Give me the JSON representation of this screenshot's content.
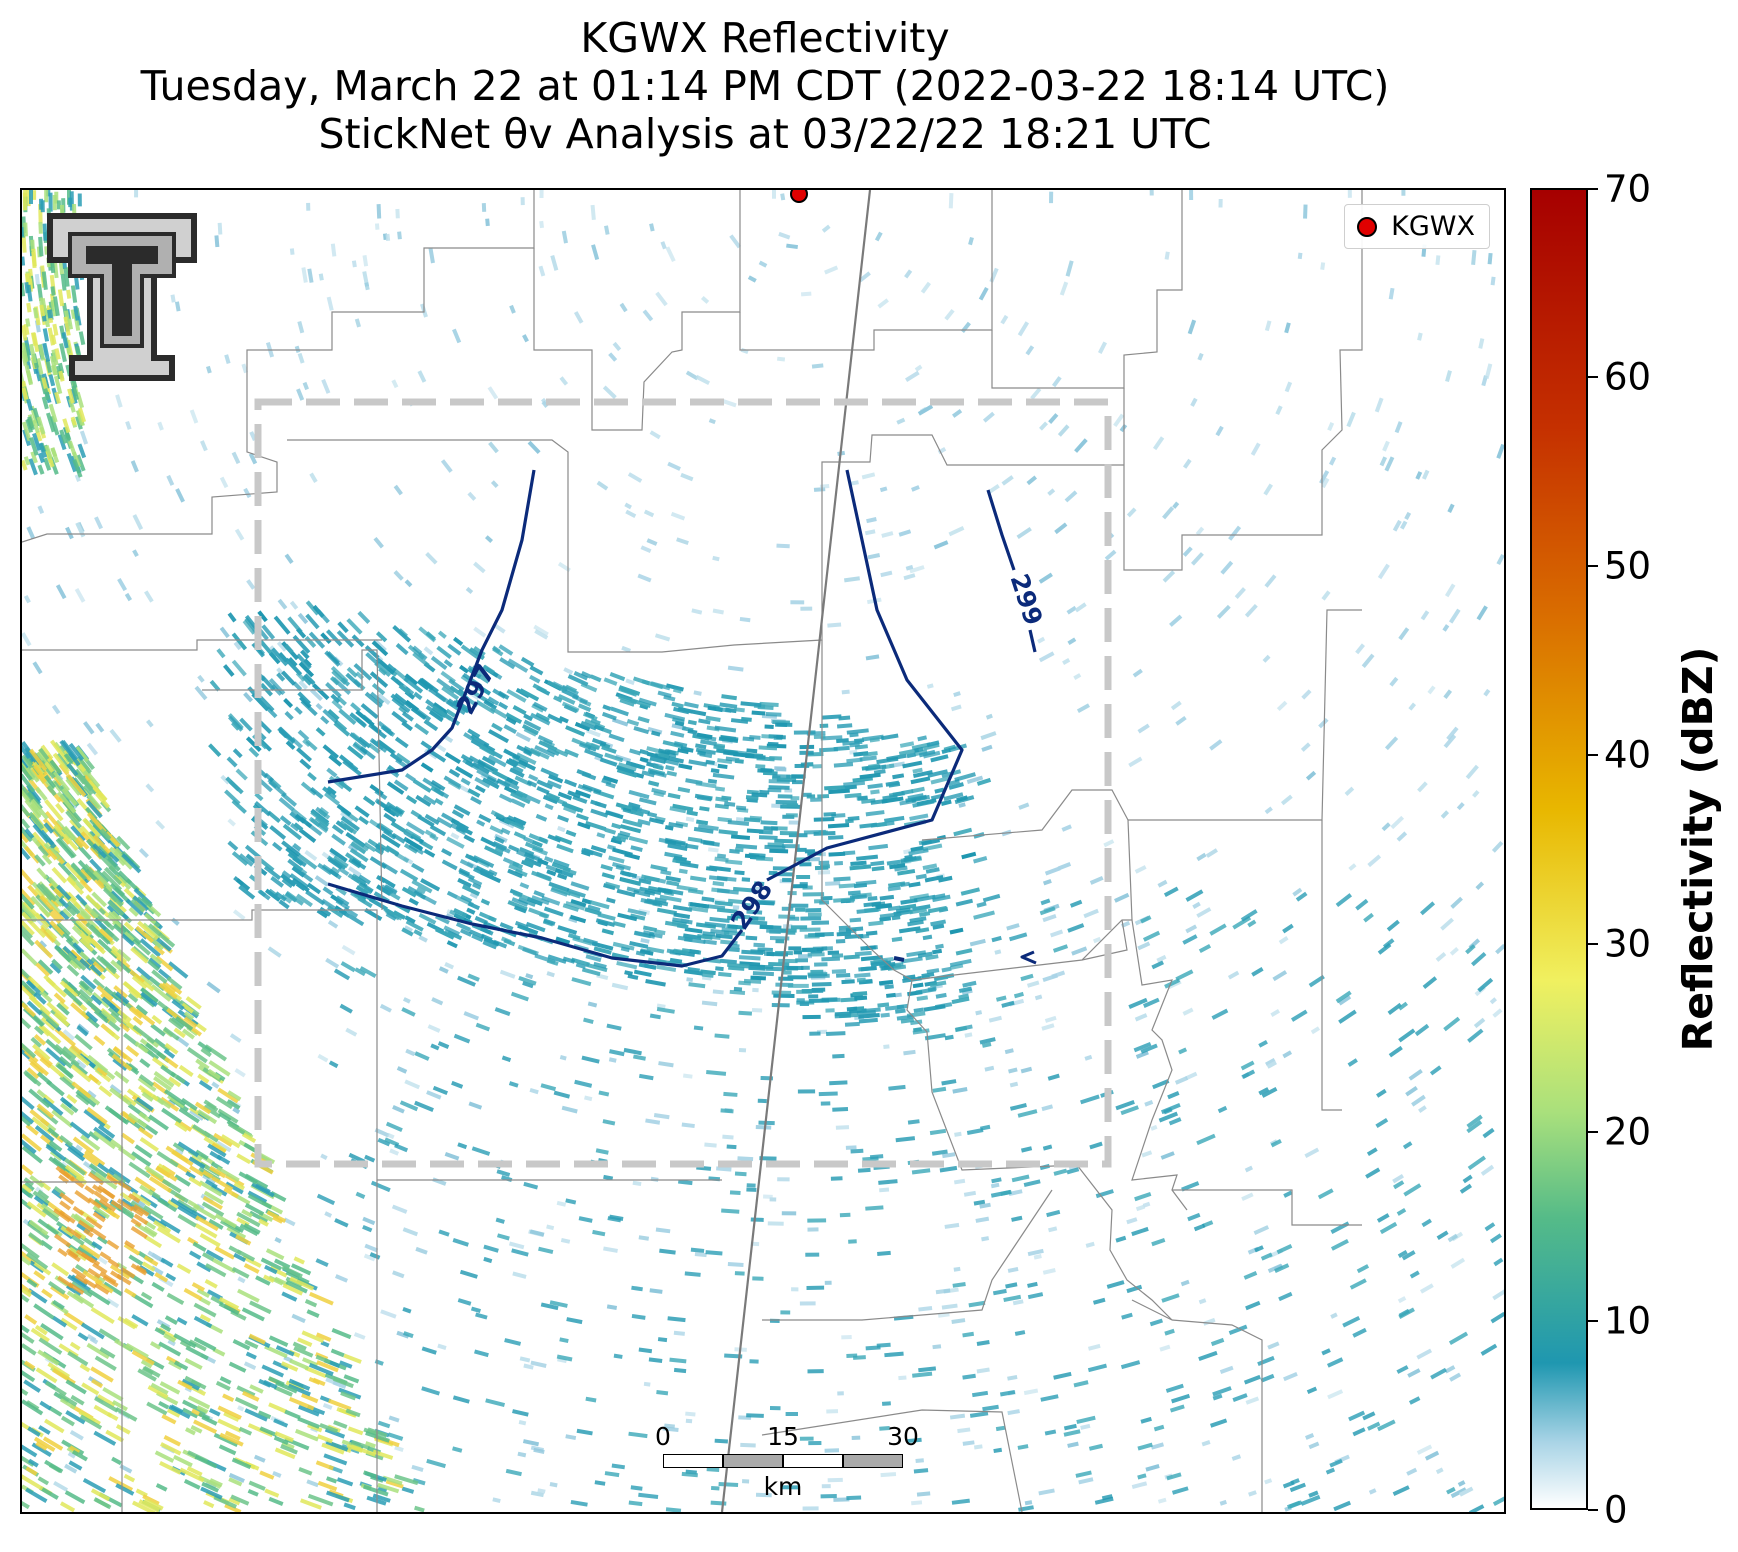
{
  "title": {
    "line1": "KGWX Reflectivity",
    "line2": "Tuesday, March 22 at 01:14 PM CDT (2022-03-22 18:14 UTC)",
    "line3": "StickNet θv Analysis at 03/22/22 18:21 UTC"
  },
  "legend": {
    "marker_label": "KGWX",
    "marker_color": "#e00000"
  },
  "scale_bar": {
    "ticks": [
      "0",
      "15",
      "30"
    ],
    "unit": "km"
  },
  "contours": [
    {
      "value": "297",
      "color": "#0b2a7a"
    },
    {
      "value": "298",
      "color": "#0b2a7a"
    },
    {
      "value": "299",
      "color": "#0b2a7a"
    }
  ],
  "colorbar": {
    "label": "Reflectivity (dBZ)",
    "ticks": [
      "0",
      "10",
      "20",
      "30",
      "40",
      "50",
      "60",
      "70"
    ],
    "min": 0,
    "max": 70,
    "colors": [
      "#ffffff",
      "#a9d4e6",
      "#1f97b0",
      "#55bb88",
      "#a9e07c",
      "#f0f060",
      "#e8b700",
      "#d96c00",
      "#c53000",
      "#a60000"
    ]
  },
  "analysis_box_color": "#c8c8c8",
  "county_line_color": "#8a8a8a"
}
